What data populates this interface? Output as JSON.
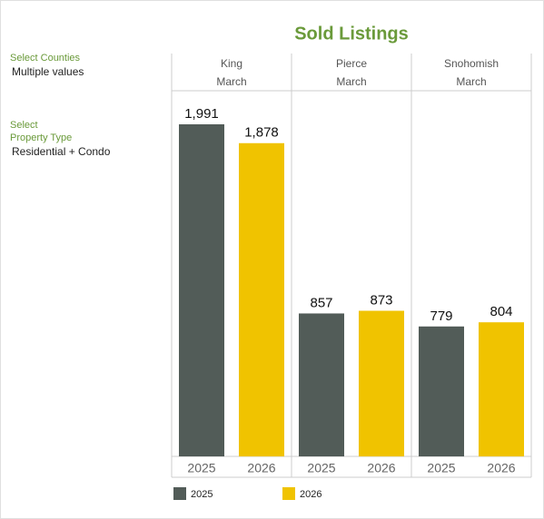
{
  "filters": [
    {
      "label": "Select Counties",
      "value": "Multiple values"
    },
    {
      "label": "Select\nProperty Type",
      "value": "Residential + Condo"
    }
  ],
  "chart_data": {
    "type": "bar",
    "title": "Sold Listings",
    "categories": [
      "King",
      "Pierce",
      "Snohomish"
    ],
    "period": "March",
    "series": [
      {
        "name": "2025",
        "color": "#525c58",
        "values": [
          1991,
          857,
          779
        ],
        "value_labels": [
          "1,991",
          "857",
          "779"
        ]
      },
      {
        "name": "2026",
        "color": "#f0c300",
        "values": [
          1878,
          873,
          804
        ],
        "value_labels": [
          "1,878",
          "873",
          "804"
        ]
      }
    ]
  }
}
